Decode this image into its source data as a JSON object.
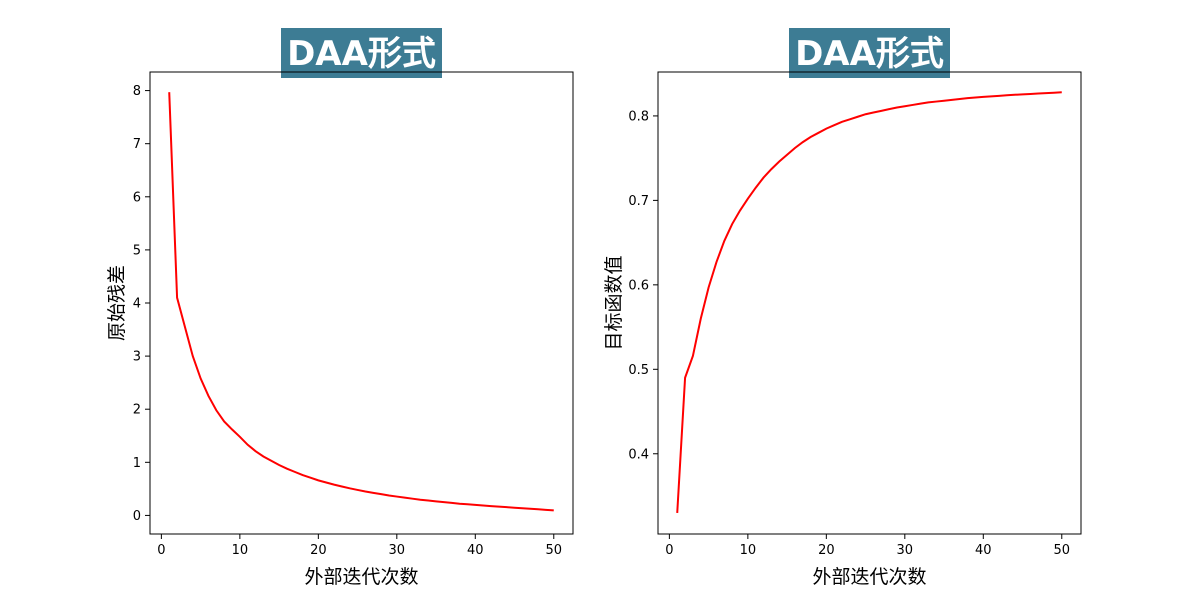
{
  "chart_data": [
    {
      "type": "line",
      "title": "DAA形式",
      "xlabel": "外部迭代次数",
      "ylabel": "原始残差",
      "xlim": [
        -1.45,
        52.45
      ],
      "ylim": [
        -0.35,
        8.35
      ],
      "xticks": [
        0,
        10,
        20,
        30,
        40,
        50
      ],
      "yticks": [
        0,
        1,
        2,
        3,
        4,
        5,
        6,
        7,
        8
      ],
      "grid": false,
      "color": "#ff0000",
      "series": [
        {
          "x": [
            1,
            2,
            3,
            4,
            5,
            6,
            7,
            8,
            9,
            10,
            11,
            12,
            13,
            14,
            15,
            16,
            17,
            18,
            19,
            20,
            21,
            22,
            23,
            24,
            25,
            26,
            27,
            28,
            29,
            30,
            31,
            32,
            33,
            34,
            35,
            36,
            37,
            38,
            39,
            40,
            41,
            42,
            43,
            44,
            45,
            46,
            47,
            48,
            49,
            50
          ],
          "values": [
            7.97,
            4.1,
            3.55,
            3.0,
            2.58,
            2.25,
            1.98,
            1.77,
            1.62,
            1.48,
            1.33,
            1.21,
            1.11,
            1.03,
            0.95,
            0.88,
            0.82,
            0.76,
            0.71,
            0.66,
            0.62,
            0.58,
            0.545,
            0.51,
            0.48,
            0.45,
            0.425,
            0.4,
            0.375,
            0.355,
            0.335,
            0.315,
            0.295,
            0.28,
            0.265,
            0.25,
            0.235,
            0.22,
            0.21,
            0.198,
            0.186,
            0.175,
            0.165,
            0.155,
            0.145,
            0.135,
            0.125,
            0.115,
            0.105,
            0.095
          ]
        }
      ]
    },
    {
      "type": "line",
      "title": "DAA形式",
      "xlabel": "外部迭代次数",
      "ylabel": "目标函数值",
      "xlim": [
        -1.45,
        52.45
      ],
      "ylim": [
        0.305,
        0.852
      ],
      "xticks": [
        0,
        10,
        20,
        30,
        40,
        50
      ],
      "yticks": [
        0.4,
        0.5,
        0.6,
        0.7,
        0.8
      ],
      "ytick_labels": [
        "0.4",
        "0.5",
        "0.6",
        "0.7",
        "0.8"
      ],
      "grid": false,
      "color": "#ff0000",
      "series": [
        {
          "x": [
            1,
            2,
            3,
            4,
            5,
            6,
            7,
            8,
            9,
            10,
            11,
            12,
            13,
            14,
            15,
            16,
            17,
            18,
            19,
            20,
            21,
            22,
            23,
            24,
            25,
            26,
            27,
            28,
            29,
            30,
            31,
            32,
            33,
            34,
            35,
            36,
            37,
            38,
            39,
            40,
            41,
            42,
            43,
            44,
            45,
            46,
            47,
            48,
            49,
            50
          ],
          "values": [
            0.33,
            0.49,
            0.516,
            0.56,
            0.597,
            0.627,
            0.652,
            0.672,
            0.688,
            0.702,
            0.715,
            0.727,
            0.737,
            0.746,
            0.754,
            0.762,
            0.769,
            0.775,
            0.78,
            0.785,
            0.789,
            0.793,
            0.796,
            0.799,
            0.802,
            0.804,
            0.806,
            0.808,
            0.81,
            0.8115,
            0.813,
            0.8145,
            0.816,
            0.817,
            0.818,
            0.819,
            0.82,
            0.821,
            0.8218,
            0.8225,
            0.8232,
            0.8238,
            0.8244,
            0.825,
            0.8255,
            0.826,
            0.8265,
            0.827,
            0.8275,
            0.828
          ]
        }
      ]
    }
  ]
}
